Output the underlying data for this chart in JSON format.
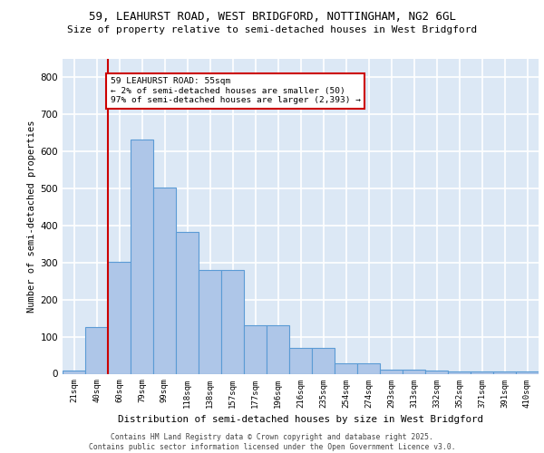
{
  "title_line1": "59, LEAHURST ROAD, WEST BRIDGFORD, NOTTINGHAM, NG2 6GL",
  "title_line2": "Size of property relative to semi-detached houses in West Bridgford",
  "xlabel": "Distribution of semi-detached houses by size in West Bridgford",
  "ylabel": "Number of semi-detached properties",
  "categories": [
    "21sqm",
    "40sqm",
    "60sqm",
    "79sqm",
    "99sqm",
    "118sqm",
    "138sqm",
    "157sqm",
    "177sqm",
    "196sqm",
    "216sqm",
    "235sqm",
    "254sqm",
    "274sqm",
    "293sqm",
    "313sqm",
    "332sqm",
    "352sqm",
    "371sqm",
    "391sqm",
    "410sqm"
  ],
  "values": [
    8,
    125,
    303,
    632,
    503,
    383,
    280,
    280,
    130,
    130,
    70,
    70,
    27,
    27,
    12,
    12,
    8,
    5,
    5,
    5,
    5
  ],
  "bar_color": "#aec6e8",
  "bar_edge_color": "#5b9bd5",
  "vline_x": 1.5,
  "vline_color": "#cc0000",
  "annotation_text": "59 LEAHURST ROAD: 55sqm\n← 2% of semi-detached houses are smaller (50)\n97% of semi-detached houses are larger (2,393) →",
  "annotation_box_color": "#ffffff",
  "annotation_box_edge": "#cc0000",
  "ylim": [
    0,
    850
  ],
  "yticks": [
    0,
    100,
    200,
    300,
    400,
    500,
    600,
    700,
    800
  ],
  "background_color": "#dce8f5",
  "grid_color": "#ffffff",
  "footer_line1": "Contains HM Land Registry data © Crown copyright and database right 2025.",
  "footer_line2": "Contains public sector information licensed under the Open Government Licence v3.0."
}
